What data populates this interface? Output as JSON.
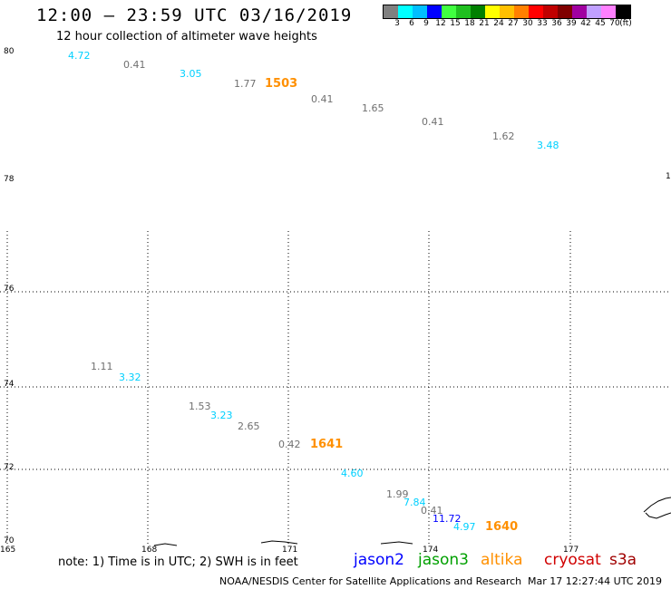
{
  "header": {
    "title": "12:00 – 23:59 UTC 03/16/2019",
    "subtitle": "12 hour collection of altimeter wave heights"
  },
  "colorbar": {
    "colors": [
      "#808080",
      "#00ffff",
      "#00bfff",
      "#0000ff",
      "#40ff40",
      "#20c020",
      "#008000",
      "#ffff00",
      "#ffc000",
      "#ff8000",
      "#ff0000",
      "#c00000",
      "#800000",
      "#a000a0",
      "#c0a0ff",
      "#ff80ff",
      "#000000"
    ],
    "labels": [
      "3",
      "6",
      "9",
      "12",
      "15",
      "18",
      "21",
      "24",
      "27",
      "30",
      "33",
      "36",
      "39",
      "42",
      "45",
      "70",
      "(ft)"
    ]
  },
  "axes": {
    "lat_labels": [
      "80",
      "78",
      "76",
      "74",
      "72",
      "70"
    ],
    "lon_labels": [
      "165",
      "168",
      "171",
      "174",
      "177"
    ],
    "edge_label": "1"
  },
  "observations": [
    {
      "value": "4.72",
      "color": "#00d0ff"
    },
    {
      "value": "0.41",
      "color": "#707070"
    },
    {
      "value": "3.05",
      "color": "#00d0ff"
    },
    {
      "value": "1.77",
      "color": "#707070"
    },
    {
      "value": "1503",
      "color": "#ff9000"
    },
    {
      "value": "0.41",
      "color": "#707070"
    },
    {
      "value": "1.65",
      "color": "#707070"
    },
    {
      "value": "0.41",
      "color": "#707070"
    },
    {
      "value": "1.62",
      "color": "#707070"
    },
    {
      "value": "3.48",
      "color": "#00d0ff"
    },
    {
      "value": "1.11",
      "color": "#707070"
    },
    {
      "value": "3.32",
      "color": "#00d0ff"
    },
    {
      "value": "1.53",
      "color": "#707070"
    },
    {
      "value": "3.23",
      "color": "#00d0ff"
    },
    {
      "value": "2.65",
      "color": "#707070"
    },
    {
      "value": "0.42",
      "color": "#707070"
    },
    {
      "value": "1641",
      "color": "#ff9000"
    },
    {
      "value": "4.60",
      "color": "#00d0ff"
    },
    {
      "value": "1.99",
      "color": "#707070"
    },
    {
      "value": "7.84",
      "color": "#00d0ff"
    },
    {
      "value": "0.41",
      "color": "#707070"
    },
    {
      "value": "11.72",
      "color": "#0000ff"
    },
    {
      "value": "4.97",
      "color": "#00d0ff"
    },
    {
      "value": "1640",
      "color": "#ff9000"
    }
  ],
  "footer": {
    "note": "note: 1) Time is in UTC; 2) SWH is in feet",
    "satellites": [
      {
        "name": "jason2",
        "color": "#0000ff"
      },
      {
        "name": "jason3",
        "color": "#00a000"
      },
      {
        "name": "altika",
        "color": "#ff9000"
      },
      {
        "name": "cryosat",
        "color": "#d00000"
      },
      {
        "name": "s3a",
        "color": "#a00000"
      }
    ],
    "credit": "NOAA/NESDIS Center for Satellite Applications and Research",
    "timestamp": "Mar 17 12:27:44 UTC 2019"
  }
}
